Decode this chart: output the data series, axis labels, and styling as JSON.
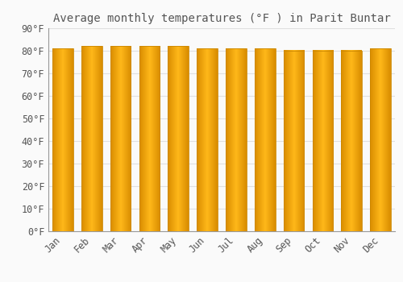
{
  "title": "Average monthly temperatures (°F ) in Parit Buntar",
  "months": [
    "Jan",
    "Feb",
    "Mar",
    "Apr",
    "May",
    "Jun",
    "Jul",
    "Aug",
    "Sep",
    "Oct",
    "Nov",
    "Dec"
  ],
  "values": [
    81,
    82,
    82,
    82,
    82,
    81,
    81,
    81,
    80,
    80,
    80,
    81
  ],
  "bar_color": "#FFA500",
  "bar_edge_color": "#CC8800",
  "background_color": "#FAFAFA",
  "plot_bg_color": "#FAFAFA",
  "grid_color": "#E0E0E0",
  "text_color": "#555555",
  "ylim": [
    0,
    90
  ],
  "ytick_step": 10,
  "title_fontsize": 10,
  "tick_fontsize": 8.5
}
